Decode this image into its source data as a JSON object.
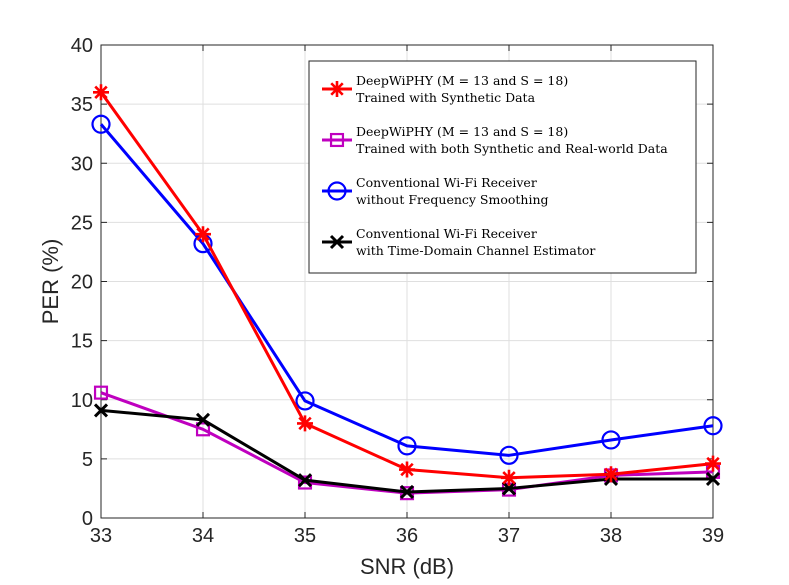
{
  "chart_data": {
    "type": "line",
    "xlabel": "SNR (dB)",
    "ylabel": "PER (%)",
    "xlim": [
      33,
      39
    ],
    "ylim": [
      0,
      40
    ],
    "x": [
      33,
      34,
      35,
      36,
      37,
      38,
      39
    ],
    "xticks": [
      "33",
      "34",
      "35",
      "36",
      "37",
      "38",
      "39"
    ],
    "yticks": [
      "0",
      "5",
      "10",
      "15",
      "20",
      "25",
      "30",
      "35",
      "40"
    ],
    "grid": true,
    "legend_position": "top-right",
    "series": [
      {
        "name_line1": "DeepWiPHY (M = 13 and S = 18)",
        "name_line2": "Trained with Synthetic Data",
        "color": "#ff0000",
        "marker": "asterisk",
        "values": [
          36.0,
          24.0,
          8.0,
          4.1,
          3.4,
          3.7,
          4.6
        ]
      },
      {
        "name_line1": "DeepWiPHY (M = 13 and S = 18)",
        "name_line2": "Trained with both Synthetic and Real-world Data",
        "color": "#bf00bf",
        "marker": "square",
        "values": [
          10.6,
          7.5,
          3.0,
          2.1,
          2.4,
          3.6,
          3.9
        ]
      },
      {
        "name_line1": "Conventional Wi-Fi Receiver",
        "name_line2": "without Frequency Smoothing",
        "color": "#0000ff",
        "marker": "circle",
        "values": [
          33.3,
          23.2,
          9.9,
          6.1,
          5.3,
          6.6,
          7.8
        ]
      },
      {
        "name_line1": "Conventional Wi-Fi Receiver",
        "name_line2": "with Time-Domain Channel Estimator",
        "color": "#000000",
        "marker": "x",
        "values": [
          9.1,
          8.3,
          3.2,
          2.2,
          2.5,
          3.3,
          3.3
        ]
      }
    ]
  }
}
